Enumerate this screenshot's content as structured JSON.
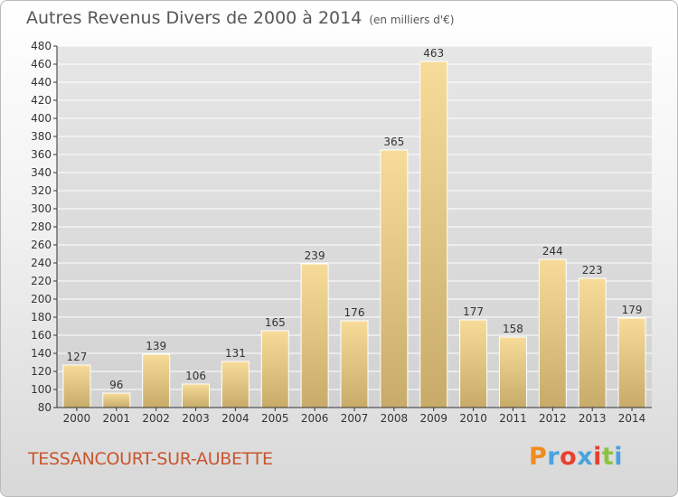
{
  "title": "Autres Revenus Divers de 2000 à 2014",
  "unit": "(en milliers d'€)",
  "place": "TESSANCOURT-SUR-AUBETTE",
  "logo": {
    "text": "Proxiti",
    "colors": [
      "#f08c1e",
      "#4aa3df",
      "#e8402f",
      "#4aa3df",
      "#e8402f",
      "#8cc23f",
      "#4aa3df"
    ]
  },
  "colors": {
    "bar_light": "#f7dc99",
    "bar_dark": "#c8ab69",
    "axis": "#333333",
    "grid": "#ffffff"
  },
  "chart_data": {
    "type": "bar",
    "title": "Autres Revenus Divers de 2000 à 2014",
    "xlabel": "",
    "ylabel": "",
    "ylim": [
      80,
      480
    ],
    "yticks": [
      80,
      100,
      120,
      140,
      160,
      180,
      200,
      220,
      240,
      260,
      280,
      300,
      320,
      340,
      360,
      380,
      400,
      420,
      440,
      460,
      480
    ],
    "grid": true,
    "categories": [
      "2000",
      "2001",
      "2002",
      "2003",
      "2004",
      "2005",
      "2006",
      "2007",
      "2008",
      "2009",
      "2010",
      "2011",
      "2012",
      "2013",
      "2014"
    ],
    "values": [
      127,
      96,
      139,
      106,
      131,
      165,
      239,
      176,
      365,
      463,
      177,
      158,
      244,
      223,
      179
    ]
  }
}
